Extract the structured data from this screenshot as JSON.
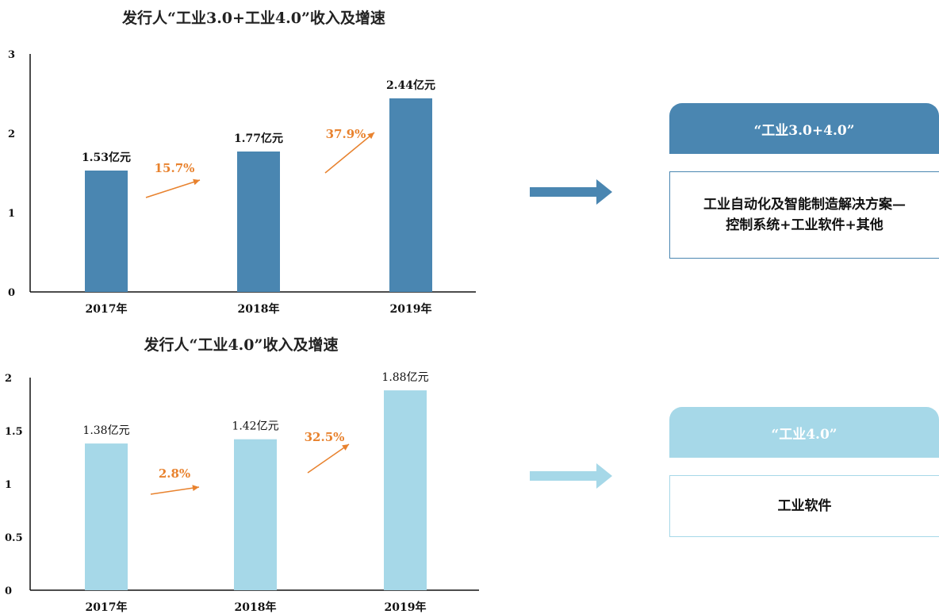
{
  "chart_data": [
    {
      "type": "bar",
      "title": "发行人“工业3.0+工业4.0”收入及增速",
      "categories": [
        "2017年",
        "2018年",
        "2019年"
      ],
      "values": [
        1.53,
        1.77,
        2.44
      ],
      "value_labels": [
        "1.53亿元",
        "1.77亿元",
        "2.44亿元"
      ],
      "growth_labels": [
        "15.7%",
        "37.9%"
      ],
      "ylim": [
        0,
        3
      ],
      "yticks": [
        "0",
        "1",
        "2",
        "3"
      ],
      "bar_color": "#4a86b1",
      "growth_color": "#e8822e",
      "grid": false
    },
    {
      "type": "bar",
      "title": "发行人“工业4.0”收入及增速",
      "categories": [
        "2017年",
        "2018年",
        "2019年"
      ],
      "values": [
        1.38,
        1.42,
        1.88
      ],
      "value_labels": [
        "1.38亿元",
        "1.42亿元",
        "1.88亿元"
      ],
      "growth_labels": [
        "2.8%",
        "32.5%"
      ],
      "ylim": [
        0,
        2
      ],
      "yticks": [
        "0",
        "0.5",
        "1",
        "1.5",
        "2"
      ],
      "bar_color": "#a6d8e8",
      "growth_color": "#e8822e",
      "grid": false
    }
  ],
  "cards": [
    {
      "header": "“工业3.0+4.0”",
      "body_line1": "工业自动化及智能制造解决方案—",
      "body_line2": "控制系统+工业软件+其他",
      "color": "#4a86b1"
    },
    {
      "header": "“工业4.0”",
      "body_line1": "工业软件",
      "body_line2": "",
      "color": "#a6d8e8"
    }
  ],
  "arrow_icons": [
    "arrow-right-icon",
    "arrow-right-icon"
  ]
}
